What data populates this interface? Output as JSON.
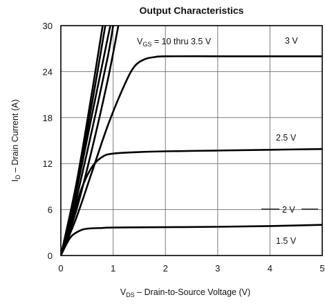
{
  "chart_data": {
    "type": "line",
    "title": "Output Characteristics",
    "xlabel_prefix": "V",
    "xlabel_sub": "DS",
    "xlabel_rest": " – Drain-to-Source Voltage (V)",
    "ylabel_prefix": "I",
    "ylabel_sub": "D",
    "ylabel_rest": " –  Drain Current (A)",
    "xlim": [
      0,
      5
    ],
    "ylim": [
      0,
      30
    ],
    "xticks": [
      "0",
      "1",
      "2",
      "3",
      "4",
      "5"
    ],
    "yticks": [
      "0",
      "6",
      "12",
      "18",
      "24",
      "30"
    ],
    "grid": true,
    "annotations": {
      "vgs_prefix": "V",
      "vgs_sub": "GS",
      "vgs_rest": " = 10 thru 3.5 V",
      "label_3v": "3 V",
      "label_2_5v": "2.5 V",
      "label_2v": "2 V",
      "label_1_5v": "1.5 V"
    },
    "series": [
      {
        "points": [
          [
            0,
            0
          ],
          [
            0.3,
            5
          ],
          [
            0.6,
            11
          ],
          [
            0.9,
            17
          ],
          [
            1.2,
            22
          ],
          [
            1.4,
            24.6
          ],
          [
            1.6,
            25.6
          ],
          [
            1.8,
            25.9
          ],
          [
            2.0,
            26.0
          ],
          [
            3.0,
            26.0
          ],
          [
            4.0,
            26.0
          ],
          [
            5.0,
            26.0
          ]
        ]
      },
      {
        "points": [
          [
            0,
            0
          ],
          [
            0.2,
            4.5
          ],
          [
            0.4,
            8.8
          ],
          [
            0.6,
            11.6
          ],
          [
            0.8,
            12.9
          ],
          [
            1.0,
            13.3
          ],
          [
            1.5,
            13.5
          ],
          [
            2.0,
            13.6
          ],
          [
            3.0,
            13.7
          ],
          [
            4.0,
            13.8
          ],
          [
            5.0,
            13.9
          ]
        ]
      },
      {
        "points": [
          [
            0,
            0
          ],
          [
            0.1,
            1.4
          ],
          [
            0.2,
            2.5
          ],
          [
            0.35,
            3.2
          ],
          [
            0.5,
            3.5
          ],
          [
            0.8,
            3.6
          ],
          [
            1.0,
            3.65
          ],
          [
            2.0,
            3.7
          ],
          [
            3.0,
            3.75
          ],
          [
            4.0,
            3.85
          ],
          [
            5.0,
            4.0
          ]
        ]
      },
      {
        "points": [
          [
            0,
            0
          ],
          [
            0.3,
            6
          ],
          [
            0.6,
            14
          ],
          [
            0.9,
            23
          ],
          [
            1.1,
            30
          ]
        ]
      },
      {
        "points": [
          [
            0,
            0
          ],
          [
            0.3,
            7.5
          ],
          [
            0.6,
            16.5
          ],
          [
            0.9,
            26
          ],
          [
            1.0,
            30
          ]
        ]
      },
      {
        "points": [
          [
            0,
            0
          ],
          [
            0.3,
            8.5
          ],
          [
            0.6,
            18.5
          ],
          [
            0.9,
            28.5
          ],
          [
            0.95,
            30
          ]
        ]
      },
      {
        "points": [
          [
            0,
            0
          ],
          [
            0.3,
            9
          ],
          [
            0.6,
            20
          ],
          [
            0.85,
            30
          ]
        ]
      },
      {
        "points": [
          [
            0,
            0
          ],
          [
            0.3,
            9.5
          ],
          [
            0.6,
            21.5
          ],
          [
            0.8,
            30
          ]
        ]
      }
    ]
  }
}
